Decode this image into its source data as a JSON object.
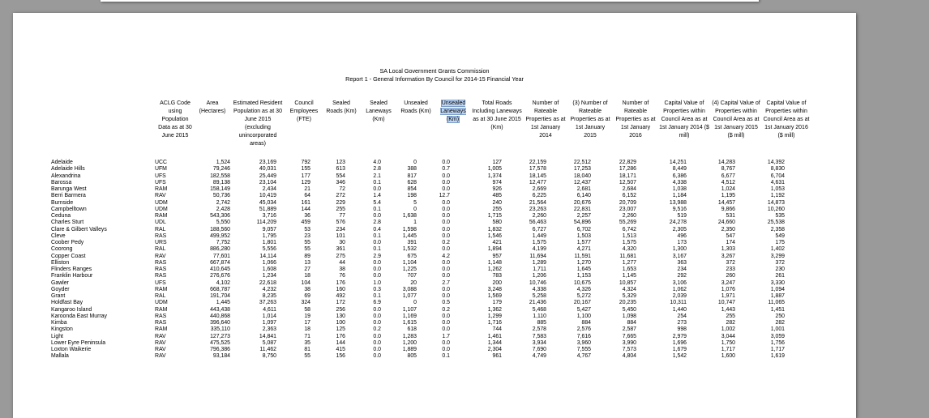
{
  "report": {
    "title_line1": "SA Local Government Grants Commission",
    "title_line2": "Report 1 - General Information By Council for 2014-15 Financial Year"
  },
  "columns": [
    {
      "key": "code",
      "label": "ACLG Code using Population Data as at 30 June 2015"
    },
    {
      "key": "area",
      "label": "Area (Hectares)"
    },
    {
      "key": "pop",
      "label": "Estimated Resident Population as at 30 June 2015 (excluding unincorporated areas)"
    },
    {
      "key": "fte",
      "label": "Council Employees (FTE)"
    },
    {
      "key": "sealed_roads",
      "label": "Sealed Roads (Km)"
    },
    {
      "key": "sealed_lane",
      "label": "Sealed Laneways (Km)"
    },
    {
      "key": "unsealed_roads",
      "label": "Unsealed Roads (Km)"
    },
    {
      "key": "unsealed_lane",
      "label": "Unsealed Laneways (Km)",
      "highlight": "#bcd4f2"
    },
    {
      "key": "total_roads",
      "label": "Total Roads Including Laneways as at 30 June 2015 (Km)"
    },
    {
      "key": "rp2014",
      "label": "Number of Rateable Properties as at 1st January 2014"
    },
    {
      "key": "rp2015",
      "label": "(3) Number of Rateable Properties as at 1st January 2015"
    },
    {
      "key": "rp2016",
      "label": "Number of Rateable Properties as at 1st January 2016"
    },
    {
      "key": "cv2014",
      "label": "Capital Value of Properties within Council Area as at 1st January 2014 ($ mill)"
    },
    {
      "key": "cv2015",
      "label": "(4) Capital Value of Properties within Council Area as at 1st January 2015 ($ mill)"
    },
    {
      "key": "cv2016",
      "label": "Capital Value of Properties within Council Area as at 1st January 2016 ($ mill)"
    }
  ],
  "rows": [
    [
      "Adelaide",
      "UCC",
      "1,524",
      "23,169",
      "792",
      "123",
      "4.0",
      "0",
      "0.0",
      "127",
      "22,159",
      "22,512",
      "22,829",
      "14,251",
      "14,283",
      "14,392"
    ],
    [
      "Adelaide Hills",
      "UFM",
      "79,246",
      "40,031",
      "155",
      "613",
      "2.8",
      "388",
      "0.7",
      "1,005",
      "17,578",
      "17,253",
      "17,286",
      "8,449",
      "8,767",
      "8,830"
    ],
    [
      "Alexandrina",
      "UFS",
      "182,558",
      "25,449",
      "177",
      "554",
      "2.1",
      "817",
      "0.0",
      "1,374",
      "18,145",
      "18,040",
      "18,171",
      "6,386",
      "6,677",
      "6,704"
    ],
    [
      "Barossa",
      "UFS",
      "89,138",
      "23,104",
      "129",
      "346",
      "0.1",
      "628",
      "0.0",
      "974",
      "12,477",
      "12,437",
      "12,507",
      "4,338",
      "4,512",
      "4,631"
    ],
    [
      "Barunga West",
      "RAM",
      "158,149",
      "2,434",
      "21",
      "72",
      "0.0",
      "854",
      "0.0",
      "926",
      "2,669",
      "2,681",
      "2,684",
      "1,038",
      "1,024",
      "1,053"
    ],
    [
      "Berri Barmera",
      "RAV",
      "50,736",
      "10,419",
      "64",
      "272",
      "1.4",
      "198",
      "12.7",
      "485",
      "6,225",
      "6,140",
      "6,152",
      "1,184",
      "1,195",
      "1,192"
    ],
    [
      "Burnside",
      "UDM",
      "2,742",
      "45,034",
      "161",
      "229",
      "5.4",
      "5",
      "0.0",
      "240",
      "21,564",
      "20,676",
      "20,709",
      "13,988",
      "14,457",
      "14,873"
    ],
    [
      "Campbelltown",
      "UDM",
      "2,428",
      "51,889",
      "144",
      "255",
      "0.1",
      "0",
      "0.0",
      "255",
      "23,263",
      "22,831",
      "23,007",
      "9,516",
      "9,866",
      "10,260"
    ],
    [
      "Ceduna",
      "RAM",
      "543,306",
      "3,716",
      "36",
      "77",
      "0.0",
      "1,638",
      "0.0",
      "1,715",
      "2,260",
      "2,257",
      "2,260",
      "519",
      "531",
      "535"
    ],
    [
      "Charles Sturt",
      "UDL",
      "5,550",
      "114,209",
      "459",
      "576",
      "2.8",
      "1",
      "0.0",
      "580",
      "56,463",
      "54,896",
      "55,269",
      "24,278",
      "24,660",
      "25,538"
    ],
    [
      "Clare & Gilbert Valleys",
      "RAL",
      "188,560",
      "9,057",
      "53",
      "234",
      "0.4",
      "1,598",
      "0.0",
      "1,832",
      "6,727",
      "6,702",
      "6,742",
      "2,305",
      "2,350",
      "2,358"
    ],
    [
      "Cleve",
      "RAS",
      "499,952",
      "1,795",
      "23",
      "101",
      "0.1",
      "1,445",
      "0.0",
      "1,546",
      "1,449",
      "1,503",
      "1,513",
      "496",
      "547",
      "549"
    ],
    [
      "Coober Pedy",
      "URS",
      "7,752",
      "1,801",
      "55",
      "30",
      "0.0",
      "391",
      "0.2",
      "421",
      "1,575",
      "1,577",
      "1,575",
      "173",
      "174",
      "175"
    ],
    [
      "Coorong",
      "RAL",
      "886,280",
      "5,556",
      "55",
      "361",
      "0.1",
      "1,532",
      "0.0",
      "1,894",
      "4,199",
      "4,271",
      "4,320",
      "1,300",
      "1,303",
      "1,402"
    ],
    [
      "Copper Coast",
      "RAV",
      "77,601",
      "14,114",
      "89",
      "275",
      "2.9",
      "675",
      "4.2",
      "957",
      "11,694",
      "11,591",
      "11,681",
      "3,167",
      "3,267",
      "3,299"
    ],
    [
      "Elliston",
      "RAS",
      "667,874",
      "1,066",
      "13",
      "44",
      "0.0",
      "1,104",
      "0.0",
      "1,148",
      "1,289",
      "1,270",
      "1,277",
      "363",
      "372",
      "372"
    ],
    [
      "Flinders Ranges",
      "RAS",
      "410,645",
      "1,608",
      "27",
      "38",
      "0.0",
      "1,225",
      "0.0",
      "1,262",
      "1,711",
      "1,645",
      "1,653",
      "234",
      "233",
      "230"
    ],
    [
      "Franklin Harbour",
      "RAS",
      "276,676",
      "1,234",
      "18",
      "76",
      "0.0",
      "707",
      "0.0",
      "783",
      "1,206",
      "1,153",
      "1,145",
      "292",
      "260",
      "261"
    ],
    [
      "Gawler",
      "UFS",
      "4,102",
      "22,618",
      "104",
      "176",
      "1.0",
      "20",
      "2.7",
      "200",
      "10,746",
      "10,675",
      "10,857",
      "3,106",
      "3,247",
      "3,330"
    ],
    [
      "Goyder",
      "RAM",
      "668,787",
      "4,232",
      "38",
      "160",
      "0.3",
      "3,088",
      "0.0",
      "3,248",
      "4,338",
      "4,326",
      "4,324",
      "1,062",
      "1,076",
      "1,094"
    ],
    [
      "Grant",
      "RAL",
      "191,704",
      "8,235",
      "69",
      "492",
      "0.1",
      "1,077",
      "0.0",
      "1,569",
      "5,258",
      "5,272",
      "5,329",
      "2,039",
      "1,971",
      "1,887"
    ],
    [
      "Holdfast Bay",
      "UDM",
      "1,445",
      "37,263",
      "324",
      "172",
      "6.9",
      "0",
      "0.5",
      "179",
      "21,436",
      "20,167",
      "20,235",
      "10,311",
      "10,747",
      "11,065"
    ],
    [
      "Kangaroo Island",
      "RAM",
      "443,438",
      "4,611",
      "58",
      "256",
      "0.0",
      "1,107",
      "0.2",
      "1,362",
      "5,468",
      "5,427",
      "5,450",
      "1,440",
      "1,443",
      "1,451"
    ],
    [
      "Karoonda East Murray",
      "RAS",
      "440,868",
      "1,014",
      "19",
      "130",
      "0.0",
      "1,169",
      "0.0",
      "1,299",
      "1,110",
      "1,100",
      "1,098",
      "254",
      "255",
      "250"
    ],
    [
      "Kimba",
      "RAS",
      "396,640",
      "1,097",
      "17",
      "100",
      "0.0",
      "1,615",
      "0.0",
      "1,716",
      "885",
      "884",
      "884",
      "273",
      "282",
      "282"
    ],
    [
      "Kingston",
      "RAM",
      "335,110",
      "2,363",
      "18",
      "125",
      "0.2",
      "618",
      "0.0",
      "744",
      "2,578",
      "2,576",
      "2,587",
      "998",
      "1,002",
      "1,001"
    ],
    [
      "Light",
      "RAV",
      "127,273",
      "14,841",
      "71",
      "176",
      "0.0",
      "1,283",
      "1.7",
      "1,461",
      "7,583",
      "7,616",
      "7,665",
      "2,979",
      "3,044",
      "3,059"
    ],
    [
      "Lower Eyre Peninsula",
      "RAV",
      "475,525",
      "5,087",
      "35",
      "144",
      "0.0",
      "1,200",
      "0.0",
      "1,344",
      "3,934",
      "3,960",
      "3,990",
      "1,696",
      "1,750",
      "1,756"
    ],
    [
      "Loxton Waikerie",
      "RAV",
      "796,386",
      "11,462",
      "81",
      "415",
      "0.0",
      "1,889",
      "0.0",
      "2,304",
      "7,690",
      "7,555",
      "7,573",
      "1,679",
      "1,717",
      "1,717"
    ],
    [
      "Mallala",
      "RAV",
      "93,184",
      "8,750",
      "55",
      "156",
      "0.0",
      "805",
      "0.1",
      "961",
      "4,749",
      "4,767",
      "4,804",
      "1,542",
      "1,600",
      "1,619"
    ]
  ]
}
